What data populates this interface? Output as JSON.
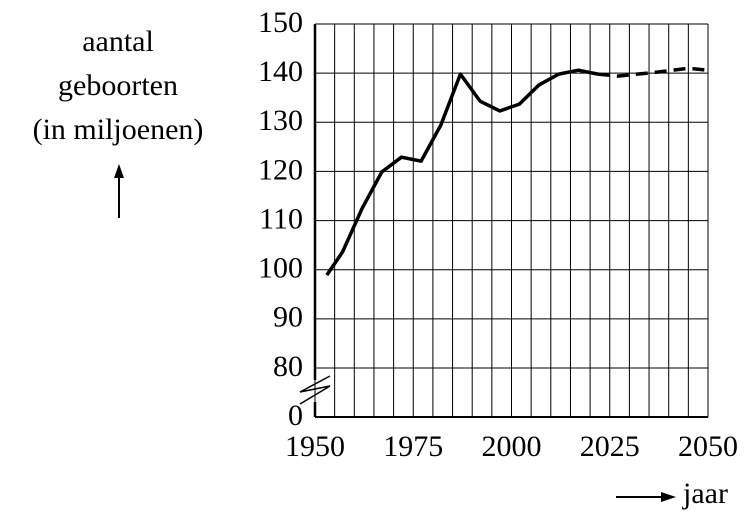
{
  "chart_data": {
    "type": "line",
    "ylabel": [
      "aantal",
      "geboorten",
      "(in miljoenen)"
    ],
    "xlabel": "jaar",
    "xlim": [
      1950,
      2050
    ],
    "xticks": [
      1950,
      1975,
      2000,
      2025,
      2050
    ],
    "xgrid": [
      1950,
      1955,
      1960,
      1965,
      1970,
      1975,
      1980,
      1985,
      1990,
      1995,
      2000,
      2005,
      2010,
      2015,
      2020,
      2025,
      2030,
      2035,
      2040,
      2045,
      2050
    ],
    "ylim": [
      0,
      150
    ],
    "y_break": [
      0,
      80
    ],
    "yticks": [
      0,
      80,
      90,
      100,
      110,
      120,
      130,
      140,
      150
    ],
    "grid": true,
    "series": [
      {
        "color": "#000000",
        "dashed": false,
        "x": [
          1953,
          1957,
          1962,
          1967,
          1972,
          1977,
          1982,
          1987,
          1992,
          1997,
          2002,
          2007,
          2012,
          2017,
          2022
        ],
        "values": [
          98.9,
          103.6,
          112.5,
          119.9,
          122.9,
          122.1,
          129.4,
          139.8,
          134.3,
          132.3,
          133.7,
          137.6,
          139.8,
          140.6,
          139.8
        ]
      },
      {
        "color": "#000000",
        "dashed": true,
        "x": [
          2022,
          2027,
          2037,
          2045,
          2050
        ],
        "values": [
          139.8,
          139.4,
          140.2,
          141,
          140.6
        ]
      }
    ]
  }
}
